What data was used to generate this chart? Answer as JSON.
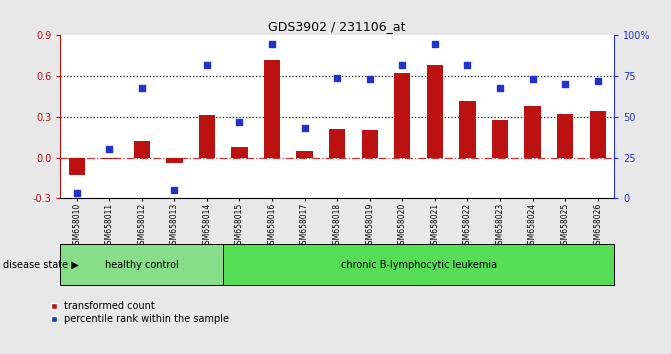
{
  "title": "GDS3902 / 231106_at",
  "samples": [
    "GSM658010",
    "GSM658011",
    "GSM658012",
    "GSM658013",
    "GSM658014",
    "GSM658015",
    "GSM658016",
    "GSM658017",
    "GSM658018",
    "GSM658019",
    "GSM658020",
    "GSM658021",
    "GSM658022",
    "GSM658023",
    "GSM658024",
    "GSM658025",
    "GSM658026"
  ],
  "bar_values": [
    -0.13,
    -0.01,
    0.12,
    -0.04,
    0.31,
    0.08,
    0.72,
    0.05,
    0.21,
    0.2,
    0.62,
    0.68,
    0.42,
    0.28,
    0.38,
    0.32,
    0.34
  ],
  "dot_values_pct": [
    3,
    30,
    68,
    5,
    82,
    47,
    95,
    43,
    74,
    73,
    82,
    95,
    82,
    68,
    73,
    70,
    72
  ],
  "ylim": [
    -0.3,
    0.9
  ],
  "y2lim": [
    0,
    100
  ],
  "yticks": [
    -0.3,
    0.0,
    0.3,
    0.6,
    0.9
  ],
  "y2ticks": [
    0,
    25,
    50,
    75,
    100
  ],
  "hlines": [
    0.3,
    0.6
  ],
  "bar_color": "#bb1111",
  "dot_color": "#2233cc",
  "zero_line_color": "#cc3333",
  "hline_color": "#111111",
  "group1_label": "healthy control",
  "group2_label": "chronic B-lymphocytic leukemia",
  "group1_count": 5,
  "group2_count": 12,
  "group1_color": "#88dd88",
  "group2_color": "#55dd55",
  "disease_state_label": "disease state",
  "legend_bar": "transformed count",
  "legend_dot": "percentile rank within the sample",
  "bg_color": "#e8e8e8",
  "plot_bg": "#ffffff",
  "label_area_color": "#cccccc"
}
